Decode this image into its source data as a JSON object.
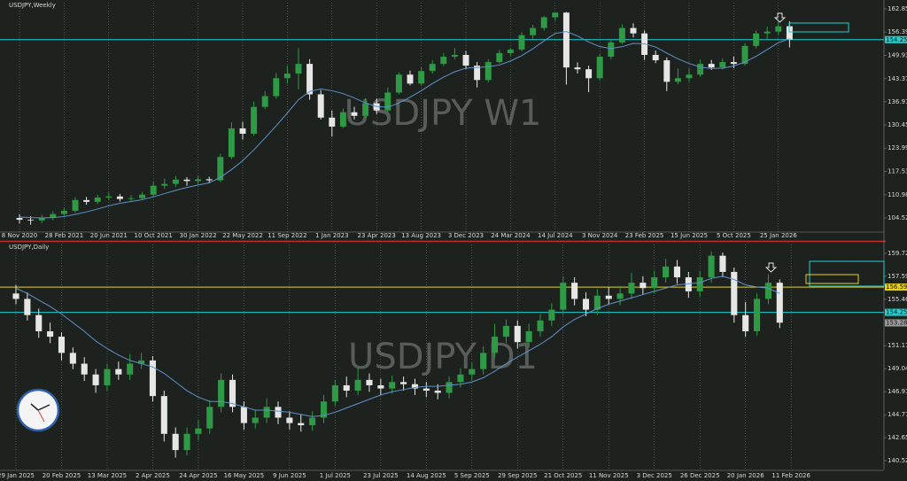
{
  "chart_data": [
    {
      "type": "candlestick",
      "title": "USDJPY,Weekly",
      "watermark": "USDJPY W1",
      "x_labels": [
        "8 Nov 2020",
        "28 Feb 2021",
        "20 Jun 2021",
        "10 Oct 2021",
        "30 Jan 2022",
        "22 May 2022",
        "11 Sep 2022",
        "1 Jan 2023",
        "23 Apr 2023",
        "13 Aug 2023",
        "3 Dec 2023",
        "24 Mar 2024",
        "14 Jul 2024",
        "3 Nov 2024",
        "23 Feb 2025",
        "15 Jun 2025",
        "5 Oct 2025",
        "25 Jan 2026"
      ],
      "open": [
        104.5,
        104.0,
        103.8,
        104.5,
        105.6,
        106.5,
        109.5,
        109.0,
        110.2,
        110.5,
        109.8,
        110.0,
        111.0,
        113.5,
        114.0,
        115.2,
        114.8,
        115.3,
        115.0,
        121.5,
        129.5,
        128.0,
        135.5,
        138.5,
        143.5,
        144.8,
        147.5,
        139.0,
        132.5,
        130.0,
        134.0,
        133.0,
        136.5,
        134.5,
        139.5,
        144.5,
        142.0,
        145.5,
        147.5,
        149.5,
        150.0,
        147.0,
        143.0,
        148.0,
        150.5,
        151.5,
        155.5,
        157.5,
        160.5,
        161.8,
        146.5,
        146.0,
        143.5,
        149.5,
        153.5,
        157.5,
        156.0,
        150.0,
        148.5,
        142.5,
        143.5,
        144.5,
        147.5,
        146.5,
        148.0,
        147.5,
        152.5,
        156.0,
        156.5,
        158.0
      ],
      "high": [
        105.5,
        105.0,
        105.4,
        106.4,
        107.3,
        110.3,
        110.4,
        111.0,
        111.6,
        111.2,
        110.9,
        111.8,
        114.6,
        115.5,
        116.2,
        115.9,
        116.3,
        116.0,
        122.4,
        131.2,
        131.3,
        137.0,
        139.9,
        145.0,
        147.0,
        151.9,
        148.8,
        140.2,
        134.5,
        135.0,
        135.5,
        137.9,
        137.8,
        140.9,
        145.1,
        145.6,
        146.6,
        148.5,
        150.5,
        151.9,
        151.1,
        148.0,
        148.8,
        151.4,
        152.0,
        156.3,
        158.4,
        160.9,
        161.9,
        162.0,
        147.9,
        147.0,
        150.2,
        154.5,
        158.5,
        158.8,
        156.8,
        151.2,
        149.3,
        146.2,
        146.3,
        148.7,
        148.6,
        149.0,
        149.5,
        153.3,
        156.8,
        157.9,
        159.2,
        159.4
      ],
      "low": [
        103.0,
        102.6,
        103.0,
        103.9,
        104.9,
        106.0,
        108.2,
        108.4,
        109.5,
        109.1,
        109.2,
        109.5,
        110.3,
        112.6,
        113.2,
        113.5,
        114.0,
        114.2,
        114.5,
        121.0,
        126.4,
        127.5,
        134.9,
        137.8,
        142.0,
        140.4,
        137.5,
        132.0,
        127.2,
        129.6,
        132.0,
        132.5,
        133.5,
        133.9,
        139.0,
        141.5,
        141.6,
        144.8,
        146.9,
        148.8,
        146.0,
        140.9,
        142.3,
        147.6,
        149.8,
        151.0,
        154.5,
        156.8,
        159.6,
        141.7,
        144.8,
        139.6,
        142.9,
        148.7,
        153.0,
        154.9,
        148.6,
        147.7,
        139.9,
        141.8,
        142.5,
        143.9,
        145.8,
        145.9,
        146.3,
        147.0,
        151.8,
        154.5,
        155.6,
        152.1
      ],
      "close": [
        104.0,
        103.8,
        104.5,
        105.6,
        106.5,
        109.5,
        109.0,
        110.2,
        110.5,
        109.8,
        110.0,
        111.0,
        113.5,
        114.0,
        115.2,
        114.8,
        115.3,
        115.0,
        121.5,
        129.5,
        128.0,
        135.5,
        138.5,
        143.5,
        144.8,
        147.5,
        139.0,
        132.5,
        130.0,
        134.0,
        133.0,
        136.5,
        134.5,
        139.5,
        144.5,
        142.0,
        145.5,
        147.5,
        149.5,
        150.0,
        147.0,
        143.0,
        148.0,
        150.5,
        151.5,
        155.5,
        157.5,
        160.5,
        161.8,
        146.5,
        146.0,
        143.5,
        149.5,
        153.5,
        157.5,
        156.0,
        150.0,
        148.5,
        142.5,
        143.5,
        144.5,
        147.5,
        146.5,
        148.0,
        147.5,
        152.5,
        156.0,
        156.5,
        158.0,
        154.3
      ],
      "ma": [
        104.8,
        104.6,
        104.5,
        104.6,
        104.9,
        105.5,
        106.2,
        107.0,
        107.9,
        108.6,
        109.1,
        109.6,
        110.4,
        111.3,
        112.2,
        113.0,
        113.7,
        114.3,
        115.8,
        118.0,
        120.5,
        123.5,
        126.8,
        130.2,
        133.8,
        137.5,
        139.8,
        140.5,
        140.0,
        139.2,
        138.0,
        136.6,
        135.6,
        135.4,
        136.6,
        138.2,
        140.0,
        142.0,
        143.8,
        145.3,
        146.3,
        146.5,
        146.7,
        147.2,
        148.3,
        149.8,
        151.7,
        153.9,
        156.0,
        156.5,
        155.3,
        153.6,
        152.3,
        151.8,
        152.3,
        153.2,
        153.1,
        152.2,
        150.5,
        148.9,
        147.6,
        146.6,
        146.2,
        146.3,
        146.9,
        148.0,
        149.6,
        151.5,
        153.4,
        154.5
      ],
      "levels": [
        {
          "value": 154.258,
          "color": "#1fd1d1"
        }
      ],
      "up_color": "#2f9a45",
      "down_color": "#e6e6e6",
      "ma_color": "#5f93c8",
      "grid": true,
      "ylim": [
        100.56,
        164.58
      ],
      "yticks": [
        {
          "value": 162.85,
          "label": "162.850"
        },
        {
          "value": 156.39,
          "label": "156.390"
        },
        {
          "value": 149.93,
          "label": "149.930"
        },
        143.375,
        136.915,
        130.455,
        123.995,
        117.535,
        {
          "value": 110.98,
          "label": "110.980"
        },
        {
          "value": 104.52,
          "label": "104.520"
        }
      ]
    },
    {
      "type": "candlestick",
      "title": "USDJPY,Daily",
      "watermark": "USDJPY D1",
      "x_labels": [
        "29 Jan 2025",
        "20 Feb 2025",
        "13 Mar 2025",
        "2 Apr 2025",
        "24 Apr 2025",
        "16 May 2025",
        "9 Jun 2025",
        "1 Jul 2025",
        "23 Jul 2025",
        "14 Aug 2025",
        "5 Sep 2025",
        "29 Sep 2025",
        "21 Oct 2025",
        "11 Nov 2025",
        "3 Dec 2025",
        "26 Dec 2025",
        "20 Jan 2026",
        "11 Feb 2026"
      ],
      "open": [
        156.0,
        155.5,
        154.0,
        152.5,
        152.0,
        150.5,
        149.5,
        148.5,
        147.5,
        149.0,
        148.5,
        149.5,
        149.8,
        146.5,
        143.0,
        141.5,
        143.0,
        143.5,
        145.5,
        148.0,
        145.5,
        144.0,
        144.5,
        145.5,
        144.5,
        144.0,
        143.8,
        144.5,
        146.0,
        147.5,
        147.0,
        148.0,
        147.5,
        147.2,
        147.8,
        147.6,
        147.2,
        147.0,
        146.8,
        147.8,
        148.5,
        149.0,
        150.5,
        152.0,
        153.0,
        151.5,
        152.5,
        153.5,
        154.5,
        157.0,
        155.5,
        154.5,
        155.8,
        155.5,
        156.0,
        157.0,
        156.5,
        157.5,
        158.5,
        157.5,
        156.2,
        157.5,
        159.5,
        158.0,
        154.0,
        152.5,
        155.5,
        157.0
      ],
      "high": [
        156.8,
        156.1,
        154.6,
        153.3,
        152.4,
        151.0,
        150.1,
        149.0,
        149.5,
        149.7,
        150.4,
        150.5,
        150.2,
        147.0,
        143.6,
        143.6,
        144.3,
        146.1,
        148.6,
        148.5,
        146.0,
        145.2,
        146.3,
        146.0,
        145.1,
        144.8,
        145.1,
        146.6,
        148.0,
        148.3,
        149.2,
        148.6,
        148.1,
        148.4,
        148.3,
        148.1,
        147.8,
        147.6,
        148.3,
        149.1,
        149.6,
        151.1,
        153.2,
        153.6,
        153.5,
        153.2,
        154.1,
        155.1,
        157.6,
        157.5,
        156.1,
        156.4,
        156.6,
        156.7,
        157.9,
        157.6,
        158.1,
        159.2,
        159.1,
        158.0,
        158.1,
        159.9,
        159.8,
        158.4,
        155.2,
        156.0,
        157.8,
        157.3
      ],
      "low": [
        155.0,
        153.5,
        151.9,
        151.4,
        149.8,
        149.0,
        147.9,
        146.8,
        147.0,
        148.0,
        148.0,
        149.0,
        146.0,
        142.3,
        140.8,
        141.0,
        142.4,
        143.0,
        145.0,
        145.0,
        143.4,
        143.5,
        144.0,
        143.9,
        143.4,
        143.2,
        143.3,
        144.0,
        145.6,
        146.4,
        146.6,
        146.9,
        146.6,
        146.7,
        147.0,
        146.6,
        146.4,
        146.2,
        146.3,
        147.3,
        148.0,
        148.5,
        150.0,
        151.4,
        150.9,
        151.0,
        152.0,
        153.0,
        154.0,
        154.9,
        153.9,
        154.0,
        155.0,
        154.9,
        155.5,
        155.9,
        156.0,
        157.0,
        156.9,
        155.6,
        155.7,
        157.0,
        157.5,
        153.3,
        152.0,
        152.1,
        155.0,
        152.8
      ],
      "close": [
        155.5,
        154.0,
        152.5,
        152.0,
        150.5,
        149.5,
        148.5,
        147.5,
        149.0,
        148.5,
        149.5,
        149.8,
        146.5,
        143.0,
        141.5,
        143.0,
        143.5,
        145.5,
        148.0,
        145.5,
        144.0,
        144.5,
        145.5,
        144.5,
        144.0,
        143.8,
        144.5,
        146.0,
        147.5,
        147.0,
        148.0,
        147.5,
        147.2,
        147.8,
        147.6,
        147.2,
        147.0,
        146.8,
        147.8,
        148.5,
        149.0,
        150.5,
        152.0,
        153.0,
        151.5,
        152.5,
        153.5,
        154.5,
        157.0,
        155.5,
        154.5,
        155.8,
        155.5,
        156.0,
        157.0,
        156.5,
        157.5,
        158.5,
        157.5,
        156.2,
        157.5,
        159.5,
        158.0,
        154.0,
        152.5,
        155.5,
        157.0,
        153.3
      ],
      "ma": [
        156.5,
        156.0,
        155.4,
        154.8,
        154.1,
        153.3,
        152.5,
        151.6,
        150.9,
        150.3,
        149.8,
        149.5,
        149.2,
        148.6,
        147.8,
        147.0,
        146.4,
        146.0,
        146.0,
        145.8,
        145.5,
        145.2,
        145.2,
        145.1,
        145.0,
        144.8,
        144.6,
        144.7,
        145.0,
        145.4,
        145.8,
        146.2,
        146.6,
        146.9,
        147.1,
        147.3,
        147.4,
        147.4,
        147.5,
        147.6,
        147.8,
        148.2,
        148.8,
        149.5,
        150.1,
        150.7,
        151.3,
        152.0,
        152.9,
        153.6,
        154.1,
        154.6,
        155.0,
        155.3,
        155.6,
        155.9,
        156.2,
        156.5,
        156.8,
        156.9,
        157.0,
        157.4,
        157.6,
        157.3,
        156.8,
        156.6,
        156.5,
        156.0
      ],
      "levels": [
        {
          "value": 156.594,
          "color": "#e8d21d"
        },
        {
          "value": 154.258,
          "color": "#1fd1d1"
        }
      ],
      "last_price": 153.281,
      "up_color": "#2f9a45",
      "down_color": "#e6e6e6",
      "ma_color": "#5f93c8",
      "grid": true,
      "ylim": [
        139.7,
        160.54
      ],
      "yticks": [
        {
          "value": 159.72,
          "label": "159.720"
        },
        {
          "value": 157.59,
          "label": "157.590"
        },
        {
          "value": 155.46,
          "label": "155.460"
        },
        {
          "value": 151.17,
          "label": "151.170"
        },
        {
          "value": 149.04,
          "label": "149.040"
        },
        {
          "value": 146.91,
          "label": "146.910"
        },
        {
          "value": 144.77,
          "label": "144.770"
        },
        {
          "value": 142.65,
          "label": "142.650"
        },
        {
          "value": 140.52,
          "label": "140.520"
        }
      ]
    }
  ]
}
